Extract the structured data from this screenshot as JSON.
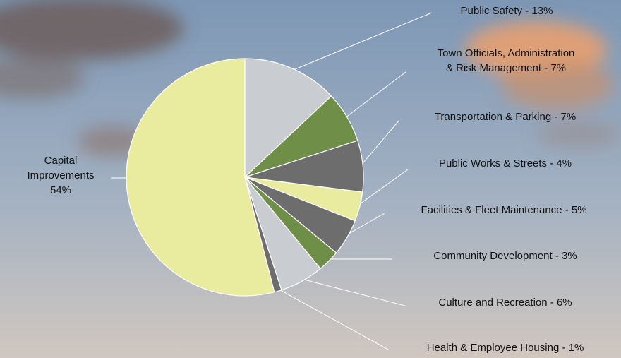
{
  "chart_data": {
    "type": "pie",
    "categories": [
      [
        "Public Safety - 13%"
      ],
      [
        "Town Officials, Administration",
        "& Risk Management - 7%"
      ],
      [
        "Transportation & Parking - 7%"
      ],
      [
        "Public Works & Streets - 4%"
      ],
      [
        "Facilities & Fleet Maintenance - 5%"
      ],
      [
        "Community Development - 3%"
      ],
      [
        "Culture and Recreation - 6%"
      ],
      [
        "Health & Employee Housing - 1%"
      ],
      [
        "Capital",
        "Improvements",
        "54%"
      ]
    ],
    "values": [
      13,
      7,
      7,
      4,
      5,
      3,
      6,
      1,
      54
    ],
    "colors": [
      "#c9ccd0",
      "#6f8e48",
      "#6d6d6d",
      "#e9ec9e",
      "#6d6d6d",
      "#6f8e48",
      "#c9ccd0",
      "#6d6d6d",
      "#e9ec9e"
    ]
  }
}
